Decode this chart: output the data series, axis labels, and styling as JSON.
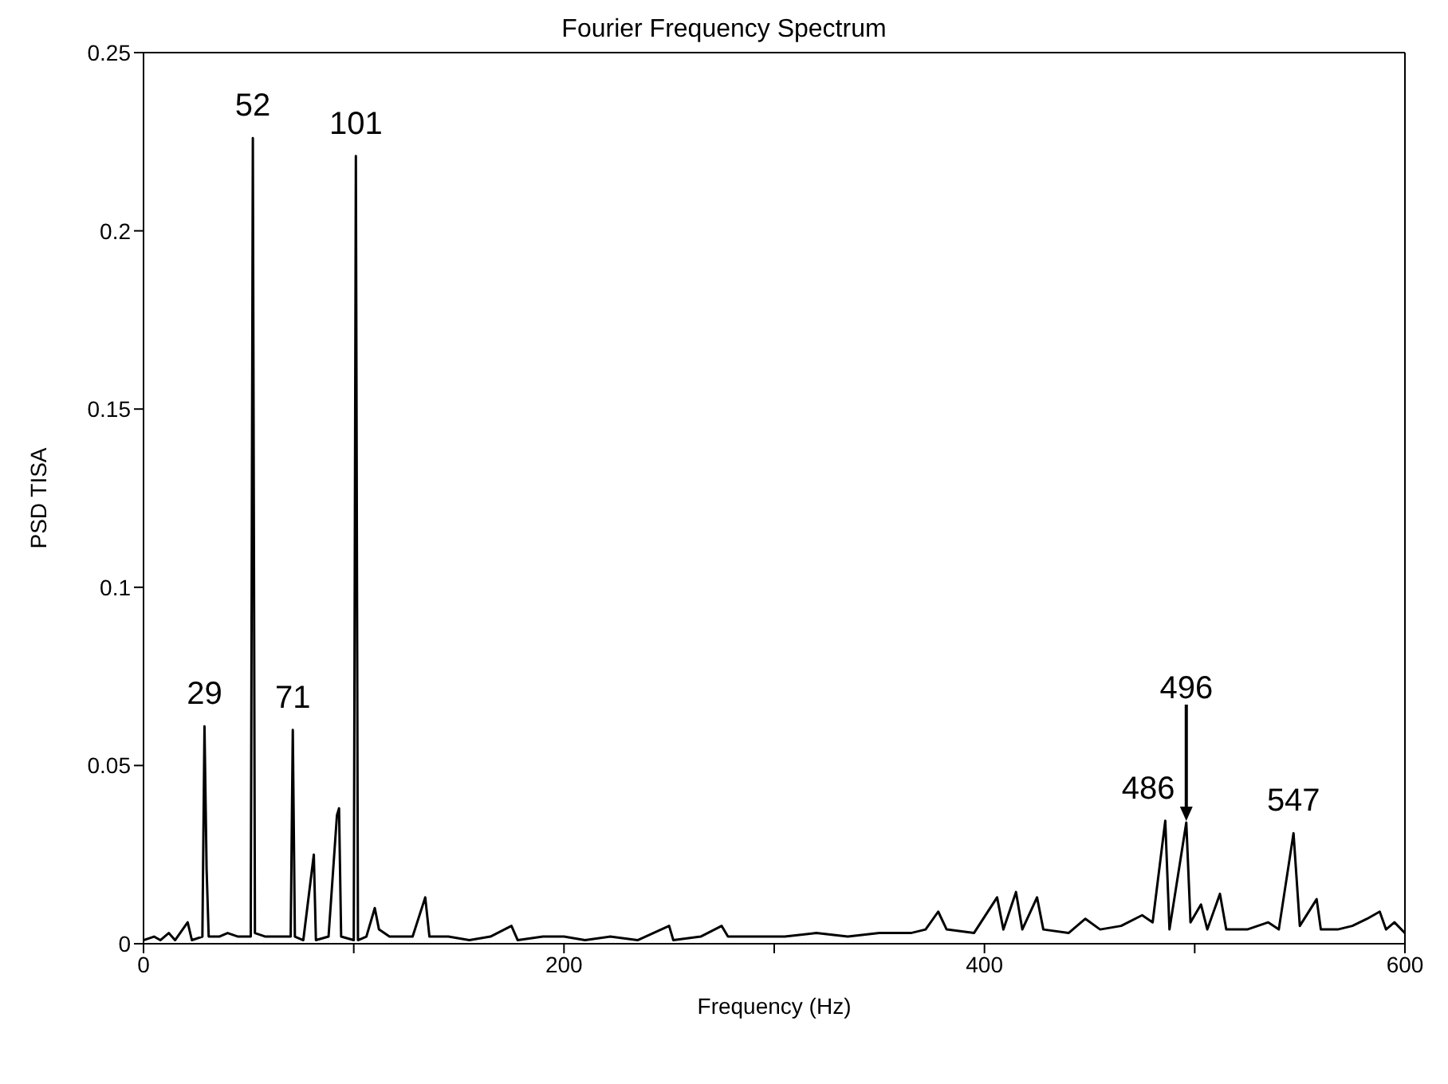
{
  "chart_data": {
    "type": "line",
    "title": "Fourier Frequency Spectrum",
    "xlabel": "Frequency (Hz)",
    "ylabel": "PSD TISA",
    "x": [
      0,
      5,
      8,
      12,
      15,
      21,
      23,
      28,
      29,
      30,
      31,
      36,
      40,
      45,
      51,
      52,
      53,
      58,
      63,
      70,
      71,
      72,
      76,
      81,
      82,
      88,
      92,
      93,
      94,
      100,
      101,
      102,
      106,
      110,
      112,
      117,
      122,
      128,
      134,
      136,
      145,
      155,
      165,
      175,
      178,
      190,
      200,
      210,
      222,
      235,
      250,
      252,
      265,
      275,
      278,
      290,
      305,
      320,
      335,
      350,
      365,
      372,
      378,
      382,
      395,
      406,
      409,
      415,
      418,
      425,
      428,
      440,
      448,
      455,
      465,
      475,
      480,
      486,
      488,
      496,
      498,
      503,
      506,
      512,
      515,
      525,
      535,
      540,
      547,
      550,
      558,
      560,
      568,
      575,
      582,
      588,
      591,
      595,
      600
    ],
    "series": [
      {
        "color": "#000000",
        "values": [
          0.001,
          0.002,
          0.001,
          0.003,
          0.001,
          0.006,
          0.001,
          0.002,
          0.061,
          0.021,
          0.002,
          0.002,
          0.003,
          0.002,
          0.002,
          0.226,
          0.003,
          0.002,
          0.002,
          0.002,
          0.06,
          0.002,
          0.001,
          0.025,
          0.001,
          0.002,
          0.036,
          0.038,
          0.002,
          0.001,
          0.221,
          0.001,
          0.002,
          0.01,
          0.004,
          0.002,
          0.002,
          0.002,
          0.013,
          0.002,
          0.002,
          0.001,
          0.002,
          0.005,
          0.001,
          0.002,
          0.002,
          0.001,
          0.002,
          0.001,
          0.005,
          0.001,
          0.002,
          0.005,
          0.002,
          0.002,
          0.002,
          0.003,
          0.002,
          0.003,
          0.003,
          0.004,
          0.009,
          0.004,
          0.003,
          0.013,
          0.004,
          0.0145,
          0.004,
          0.013,
          0.004,
          0.003,
          0.007,
          0.004,
          0.005,
          0.008,
          0.006,
          0.0345,
          0.004,
          0.034,
          0.006,
          0.011,
          0.004,
          0.014,
          0.004,
          0.004,
          0.006,
          0.004,
          0.031,
          0.005,
          0.0125,
          0.004,
          0.004,
          0.005,
          0.007,
          0.009,
          0.004,
          0.006,
          0.003
        ]
      }
    ],
    "xlim": [
      0,
      600
    ],
    "xticks": [
      0,
      {
        "value": 100,
        "label": null
      },
      200,
      {
        "value": 300,
        "label": null
      },
      400,
      {
        "value": 500,
        "label": null
      },
      600
    ],
    "ylim": [
      0,
      0.25
    ],
    "yticks": [
      0,
      0.05,
      0.1,
      0.15,
      0.2,
      0.25
    ],
    "annotations": [
      {
        "text": "29",
        "x": 29,
        "y": 0.061
      },
      {
        "text": "52",
        "x": 52,
        "y": 0.226
      },
      {
        "text": "71",
        "x": 71,
        "y": 0.06
      },
      {
        "text": "101",
        "x": 101,
        "y": 0.221
      },
      {
        "text": "486",
        "x": 486,
        "y": 0.0345
      },
      {
        "text": "496",
        "x": 496,
        "y": 0.034
      },
      {
        "text": "547",
        "x": 547,
        "y": 0.031
      }
    ],
    "grid": false,
    "legend": false,
    "marker": "none",
    "line_style": "solid"
  }
}
